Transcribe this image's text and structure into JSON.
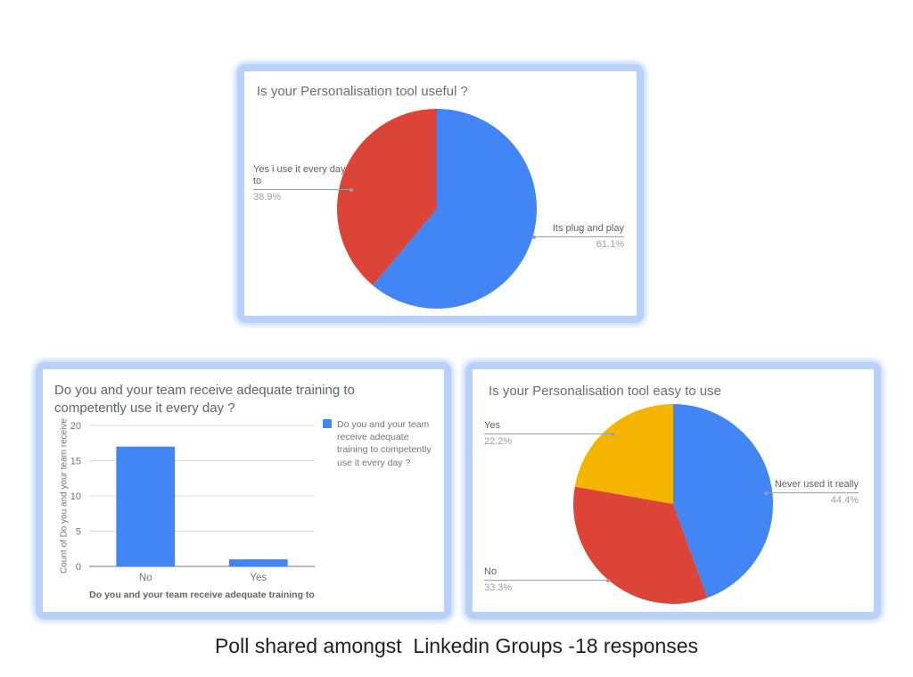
{
  "caption": "Poll shared amongst  Linkedin Groups -18 responses",
  "colors": {
    "blue": "#4285f4",
    "red": "#db4437",
    "yellow": "#f4b400",
    "card_glow": "#b9d1f8"
  },
  "chart_data": [
    {
      "id": "useful",
      "type": "pie",
      "title": "Is your Personalisation tool useful ?",
      "start_angle_deg": 0,
      "direction": "clockwise",
      "legend_position": "none",
      "slices": [
        {
          "label": "Its plug and play",
          "pct_label": "61.1%",
          "value": 61.1,
          "color": "#4285f4"
        },
        {
          "label": "Yes i use it every day to",
          "pct_label": "38.9%",
          "value": 38.9,
          "color": "#db4437"
        }
      ]
    },
    {
      "id": "training",
      "type": "bar",
      "title": "Do you and your team receive adequate training to\ncompetently use it every day ?",
      "categories": [
        "No",
        "Yes"
      ],
      "values": [
        17,
        1
      ],
      "yticks": [
        0,
        5,
        10,
        15,
        20
      ],
      "ylim": [
        0,
        20
      ],
      "ylabel": "Count of Do you and your team receive",
      "xlabel": "Do you and your team receive adequate training to",
      "legend": "Do you and your team receive adequate training to competently use it every day ?",
      "legend_position": "right",
      "grid": true,
      "bar_color": "#4285f4"
    },
    {
      "id": "easy",
      "type": "pie",
      "title": "Is your Personalisation tool easy to use",
      "start_angle_deg": 0,
      "direction": "clockwise",
      "legend_position": "none",
      "slices": [
        {
          "label": "Never used it really",
          "pct_label": "44.4%",
          "value": 44.4,
          "color": "#4285f4"
        },
        {
          "label": "No",
          "pct_label": "33.3%",
          "value": 33.3,
          "color": "#db4437"
        },
        {
          "label": "Yes",
          "pct_label": "22.2%",
          "value": 22.2,
          "color": "#f4b400"
        }
      ]
    }
  ]
}
